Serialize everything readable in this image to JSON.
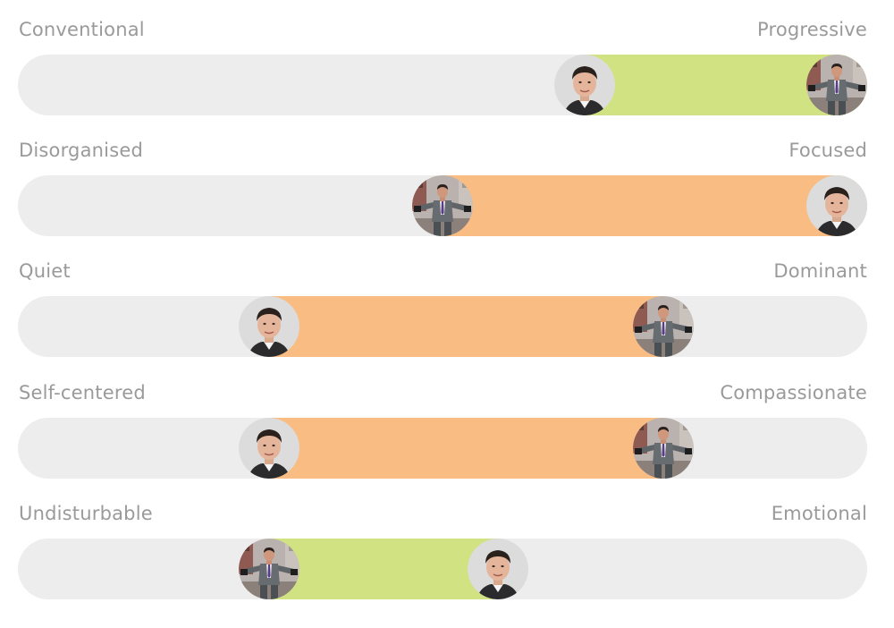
{
  "colors": {
    "track": "#ededed",
    "green_fill": "#d1e283",
    "orange_fill": "#f9bd84",
    "label_text": "#9a9a9a"
  },
  "scales": [
    {
      "left_label": "Conventional",
      "right_label": "Progressive",
      "fill_color": "#d1e283",
      "markers": [
        {
          "icon": "headshot-avatar-icon",
          "position": 0.68
        },
        {
          "icon": "suit-man-city-avatar-icon",
          "position": 1.0
        }
      ]
    },
    {
      "left_label": "Disorganised",
      "right_label": "Focused",
      "fill_color": "#f9bd84",
      "markers": [
        {
          "icon": "suit-man-city-avatar-icon",
          "position": 0.5
        },
        {
          "icon": "headshot-avatar-icon",
          "position": 1.0
        }
      ]
    },
    {
      "left_label": "Quiet",
      "right_label": "Dominant",
      "fill_color": "#f9bd84",
      "markers": [
        {
          "icon": "headshot-avatar-icon",
          "position": 0.28
        },
        {
          "icon": "suit-man-city-avatar-icon",
          "position": 0.78
        }
      ]
    },
    {
      "left_label": "Self-centered",
      "right_label": "Compassionate",
      "fill_color": "#f9bd84",
      "markers": [
        {
          "icon": "headshot-avatar-icon",
          "position": 0.28
        },
        {
          "icon": "suit-man-city-avatar-icon",
          "position": 0.78
        }
      ]
    },
    {
      "left_label": "Undisturbable",
      "right_label": "Emotional",
      "fill_color": "#d1e283",
      "markers": [
        {
          "icon": "suit-man-city-avatar-icon",
          "position": 0.28
        },
        {
          "icon": "headshot-avatar-icon",
          "position": 0.57
        }
      ]
    }
  ]
}
